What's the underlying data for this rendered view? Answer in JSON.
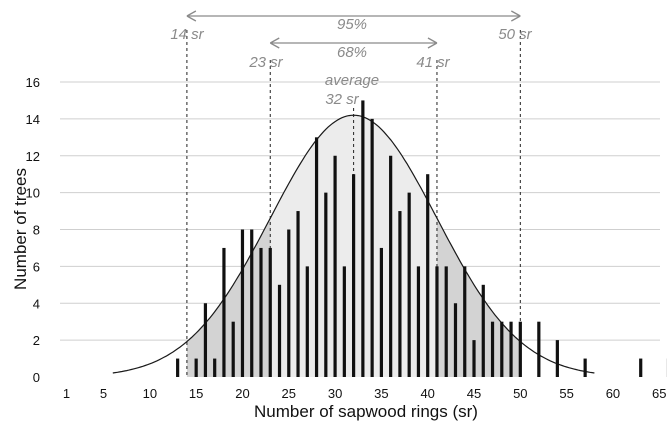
{
  "chart_data": {
    "type": "bar",
    "xlabel": "Number of sapwood rings (sr)",
    "ylabel": "Number of trees",
    "xlim": [
      1,
      66
    ],
    "ylim": [
      0,
      16
    ],
    "x_ticks": [
      1,
      5,
      10,
      15,
      20,
      25,
      30,
      35,
      40,
      45,
      50,
      55,
      60,
      65
    ],
    "y_ticks": [
      0,
      2,
      4,
      6,
      8,
      10,
      12,
      14,
      16
    ],
    "grid": "horizontal",
    "x": [
      13,
      15,
      16,
      17,
      18,
      19,
      20,
      21,
      22,
      23,
      24,
      25,
      26,
      27,
      28,
      29,
      30,
      31,
      32,
      33,
      34,
      35,
      36,
      37,
      38,
      39,
      40,
      41,
      42,
      43,
      44,
      45,
      46,
      47,
      48,
      49,
      50,
      52,
      54,
      57,
      63,
      66
    ],
    "values": [
      1,
      1,
      4,
      1,
      7,
      3,
      8,
      8,
      7,
      7,
      5,
      8,
      9,
      6,
      13,
      10,
      12,
      6,
      11,
      15,
      14,
      7,
      12,
      9,
      10,
      6,
      11,
      6,
      6,
      4,
      6,
      2,
      5,
      3,
      3,
      3,
      3,
      3,
      2,
      1,
      1,
      1
    ],
    "curve": {
      "type": "normal-fit",
      "mean": 32,
      "peak": 14.2,
      "support_x": [
        6,
        58
      ],
      "ranges": {
        "p68": [
          23,
          41
        ],
        "p95": [
          14,
          50
        ]
      }
    },
    "annotations": {
      "average_word": "average",
      "average_value": "32 sr",
      "label_68": "68%",
      "label_95": "95%",
      "lower_68": "23 sr",
      "upper_68": "41 sr",
      "lower_95": "14 sr",
      "upper_95": "50 sr"
    },
    "colors": {
      "bars": "#111111",
      "band_95": "#d3d3d3",
      "band_68": "#ececec",
      "curve": "#1a1a1a",
      "annotation": "#8a8a8a",
      "grid": "#cfcfcf"
    }
  }
}
